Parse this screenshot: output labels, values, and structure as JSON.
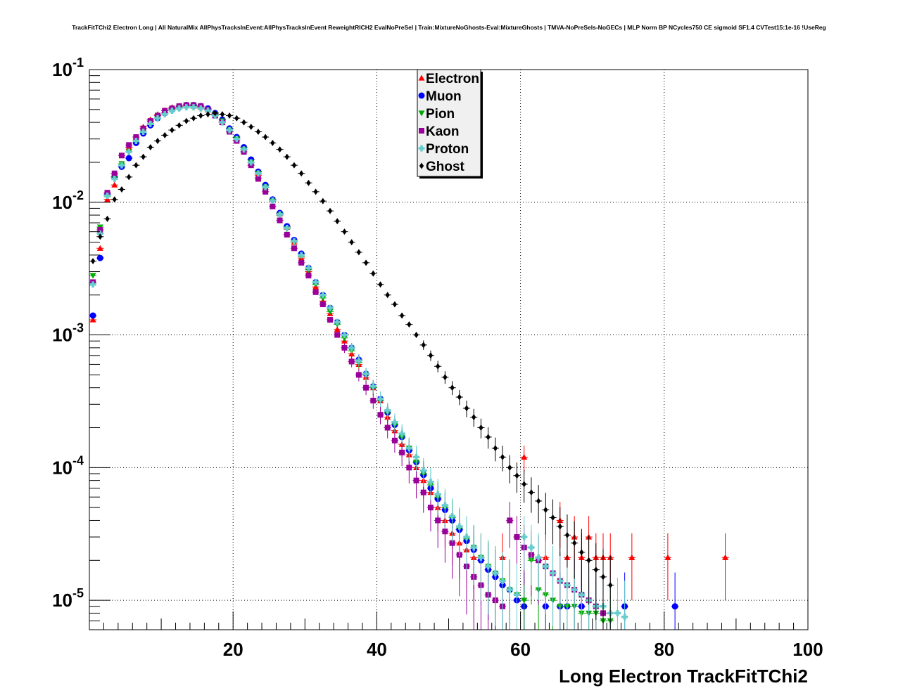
{
  "chart_data": {
    "type": "scatter",
    "title": "TrackFitTChi2 Electron Long | All NaturalMix AllPhysTracksInEvent:AllPhysTracksInEvent ReweightRICH2 EvalNoPreSel | Train:MixtureNoGhosts-Eval:MixtureGhosts | TMVA-NoPreSels-NoGECs | MLP Norm BP NCycles750 CE sigmoid SF1.4 CVTest15:1e-16 !UseReg",
    "xlabel": "Long Electron TrackFitTChi2",
    "ylabel": "",
    "xlim": [
      0,
      100
    ],
    "ylim": [
      6e-06,
      0.1
    ],
    "y_scale": "log",
    "grid": true,
    "legend_position": "top-center",
    "x_tick_labels": [
      "20",
      "40",
      "60",
      "80",
      "100"
    ],
    "y_tick_labels": [
      {
        "base": "10",
        "exp": "-1",
        "value": 0.1
      },
      {
        "base": "10",
        "exp": "-2",
        "value": 0.01
      },
      {
        "base": "10",
        "exp": "-3",
        "value": 0.001
      },
      {
        "base": "10",
        "exp": "-4",
        "value": 0.0001
      },
      {
        "base": "10",
        "exp": "-5",
        "value": 1e-05
      }
    ],
    "series": [
      {
        "name": "Electron",
        "color": "#ff0000",
        "marker": "triangle-up",
        "x": [
          0.5,
          1.5,
          2.5,
          3.5,
          4.5,
          5.5,
          6.5,
          7.5,
          8.5,
          9.5,
          10.5,
          11.5,
          12.5,
          13.5,
          14.5,
          15.5,
          16.5,
          17.5,
          18.5,
          19.5,
          20.5,
          21.5,
          22.5,
          23.5,
          24.5,
          25.5,
          26.5,
          27.5,
          28.5,
          29.5,
          30.5,
          31.5,
          32.5,
          33.5,
          34.5,
          35.5,
          36.5,
          37.5,
          38.5,
          39.5,
          40.5,
          41.5,
          42.5,
          43.5,
          44.5,
          45.5,
          46.5,
          47.5,
          48.5,
          49.5,
          50.5,
          51.5,
          52.5,
          53.5,
          54.5,
          57.5,
          60.5,
          63.5,
          65.5,
          66.5,
          67.5,
          68.5,
          69.5,
          70.5,
          71.5,
          72.5,
          75.5,
          80.5,
          88.5
        ],
        "y": [
          0.0013,
          0.0045,
          0.0105,
          0.0135,
          0.0195,
          0.026,
          0.031,
          0.037,
          0.042,
          0.046,
          0.049,
          0.052,
          0.053,
          0.054,
          0.053,
          0.052,
          0.05,
          0.045,
          0.04,
          0.035,
          0.03,
          0.025,
          0.02,
          0.016,
          0.013,
          0.0105,
          0.0082,
          0.0065,
          0.005,
          0.0038,
          0.003,
          0.0023,
          0.0018,
          0.00145,
          0.0011,
          0.0009,
          0.00072,
          0.0006,
          0.00048,
          0.0004,
          0.00032,
          0.00024,
          0.00019,
          0.00015,
          0.000125,
          0.0001,
          8e-05,
          6.5e-05,
          5e-05,
          4e-05,
          3.2e-05,
          2.7e-05,
          2.4e-05,
          2.1e-05,
          2.1e-05,
          2.1e-05,
          0.00012,
          2.1e-05,
          4e-05,
          2.1e-05,
          3e-05,
          2.1e-05,
          3e-05,
          2.1e-05,
          2.1e-05,
          2.1e-05,
          2.1e-05,
          2.1e-05,
          2.1e-05
        ]
      },
      {
        "name": "Muon",
        "color": "#0000ff",
        "marker": "circle",
        "x": [
          0.5,
          1.5,
          2.5,
          3.5,
          4.5,
          5.5,
          6.5,
          7.5,
          8.5,
          9.5,
          10.5,
          11.5,
          12.5,
          13.5,
          14.5,
          15.5,
          16.5,
          17.5,
          18.5,
          19.5,
          20.5,
          21.5,
          22.5,
          23.5,
          24.5,
          25.5,
          26.5,
          27.5,
          28.5,
          29.5,
          30.5,
          31.5,
          32.5,
          33.5,
          34.5,
          35.5,
          36.5,
          37.5,
          38.5,
          39.5,
          40.5,
          41.5,
          42.5,
          43.5,
          44.5,
          45.5,
          46.5,
          47.5,
          48.5,
          49.5,
          50.5,
          51.5,
          52.5,
          53.5,
          54.5,
          55.5,
          56.5,
          57.5,
          58.5,
          59.5,
          60.5,
          63.5,
          65.5,
          66.5,
          68.5,
          74.5,
          81.5
        ],
        "y": [
          0.0014,
          0.0038,
          0.0115,
          0.0155,
          0.0185,
          0.0215,
          0.028,
          0.033,
          0.038,
          0.043,
          0.047,
          0.05,
          0.052,
          0.054,
          0.054,
          0.053,
          0.051,
          0.047,
          0.042,
          0.036,
          0.031,
          0.026,
          0.021,
          0.017,
          0.0135,
          0.0105,
          0.0083,
          0.0066,
          0.0052,
          0.0041,
          0.0032,
          0.0025,
          0.002,
          0.0016,
          0.00125,
          0.001,
          0.0008,
          0.00065,
          0.00051,
          0.00041,
          0.00033,
          0.00026,
          0.00021,
          0.00017,
          0.000135,
          0.00011,
          8.8e-05,
          7e-05,
          5.8e-05,
          4.8e-05,
          4e-05,
          3.4e-05,
          2.8e-05,
          2.4e-05,
          2e-05,
          1.7e-05,
          1.5e-05,
          1.3e-05,
          1.2e-05,
          1e-05,
          9e-06,
          9e-06,
          9e-06,
          9e-06,
          9e-06,
          9e-06,
          9e-06
        ]
      },
      {
        "name": "Pion",
        "color": "#00aa00",
        "marker": "triangle-down",
        "x": [
          0.5,
          1.5,
          2.5,
          3.5,
          4.5,
          5.5,
          6.5,
          7.5,
          8.5,
          9.5,
          10.5,
          11.5,
          12.5,
          13.5,
          14.5,
          15.5,
          16.5,
          17.5,
          18.5,
          19.5,
          20.5,
          21.5,
          22.5,
          23.5,
          24.5,
          25.5,
          26.5,
          27.5,
          28.5,
          29.5,
          30.5,
          31.5,
          32.5,
          33.5,
          34.5,
          35.5,
          36.5,
          37.5,
          38.5,
          39.5,
          40.5,
          41.5,
          42.5,
          43.5,
          44.5,
          45.5,
          46.5,
          47.5,
          48.5,
          49.5,
          50.5,
          51.5,
          52.5,
          53.5,
          54.5,
          55.5,
          56.5,
          57.5,
          58.5,
          59.5,
          60.5,
          61.5,
          62.5,
          63.5,
          64.5,
          65.5,
          66.5,
          67.5,
          68.5,
          69.5,
          70.5,
          71.5,
          72.5
        ],
        "y": [
          0.0028,
          0.0065,
          0.011,
          0.0155,
          0.0195,
          0.024,
          0.029,
          0.034,
          0.039,
          0.043,
          0.047,
          0.05,
          0.052,
          0.053,
          0.053,
          0.052,
          0.05,
          0.046,
          0.041,
          0.035,
          0.03,
          0.025,
          0.02,
          0.0165,
          0.013,
          0.0102,
          0.008,
          0.0063,
          0.005,
          0.0039,
          0.0031,
          0.0024,
          0.0019,
          0.0015,
          0.0012,
          0.00095,
          0.00076,
          0.00062,
          0.0005,
          0.0004,
          0.00032,
          0.00026,
          0.00021,
          0.00017,
          0.00014,
          0.00011,
          9e-05,
          7.4e-05,
          6e-05,
          5e-05,
          4.2e-05,
          3.5e-05,
          2.9e-05,
          2.5e-05,
          2.1e-05,
          1.8e-05,
          1.6e-05,
          1.4e-05,
          1.2e-05,
          1.1e-05,
          1e-05,
          2e-05,
          1.2e-05,
          1.1e-05,
          1e-05,
          9e-06,
          9e-06,
          9e-06,
          8e-06,
          8e-06,
          8e-06,
          7e-06,
          7e-06
        ]
      },
      {
        "name": "Kaon",
        "color": "#990099",
        "marker": "square",
        "x": [
          0.5,
          1.5,
          2.5,
          3.5,
          4.5,
          5.5,
          6.5,
          7.5,
          8.5,
          9.5,
          10.5,
          11.5,
          12.5,
          13.5,
          14.5,
          15.5,
          16.5,
          17.5,
          18.5,
          19.5,
          20.5,
          21.5,
          22.5,
          23.5,
          24.5,
          25.5,
          26.5,
          27.5,
          28.5,
          29.5,
          30.5,
          31.5,
          32.5,
          33.5,
          34.5,
          35.5,
          36.5,
          37.5,
          38.5,
          39.5,
          40.5,
          41.5,
          42.5,
          43.5,
          44.5,
          45.5,
          46.5,
          47.5,
          48.5,
          49.5,
          50.5,
          51.5,
          52.5,
          53.5,
          54.5,
          55.5,
          56.5,
          57.5,
          58.5,
          59.5,
          60.5,
          61.5,
          62.5,
          63.5,
          64.5,
          65.5,
          66.5,
          67.5,
          68.5,
          69.5,
          70.5,
          71.5
        ],
        "y": [
          0.0025,
          0.0062,
          0.0118,
          0.0165,
          0.0225,
          0.027,
          0.031,
          0.036,
          0.041,
          0.045,
          0.049,
          0.051,
          0.053,
          0.054,
          0.054,
          0.053,
          0.05,
          0.045,
          0.04,
          0.034,
          0.029,
          0.024,
          0.019,
          0.015,
          0.012,
          0.0093,
          0.0073,
          0.0057,
          0.0045,
          0.0035,
          0.0028,
          0.0021,
          0.0017,
          0.0013,
          0.001,
          0.0008,
          0.00063,
          0.0005,
          0.0004,
          0.00032,
          0.00025,
          0.0002,
          0.00016,
          0.00013,
          0.0001,
          8e-05,
          6.5e-05,
          5e-05,
          4e-05,
          3.3e-05,
          2.7e-05,
          2.2e-05,
          1.8e-05,
          1.5e-05,
          1.3e-05,
          1.1e-05,
          1e-05,
          9e-06,
          4e-05,
          3e-05,
          2.5e-05,
          2.2e-05,
          2e-05,
          1.8e-05,
          1.6e-05,
          1.4e-05,
          1.3e-05,
          1.2e-05,
          1.1e-05,
          1e-05,
          9e-06,
          8e-06
        ]
      },
      {
        "name": "Proton",
        "color": "#66cccc",
        "marker": "plus",
        "x": [
          0.5,
          1.5,
          2.5,
          3.5,
          4.5,
          5.5,
          6.5,
          7.5,
          8.5,
          9.5,
          10.5,
          11.5,
          12.5,
          13.5,
          14.5,
          15.5,
          16.5,
          17.5,
          18.5,
          19.5,
          20.5,
          21.5,
          22.5,
          23.5,
          24.5,
          25.5,
          26.5,
          27.5,
          28.5,
          29.5,
          30.5,
          31.5,
          32.5,
          33.5,
          34.5,
          35.5,
          36.5,
          37.5,
          38.5,
          39.5,
          40.5,
          41.5,
          42.5,
          43.5,
          44.5,
          45.5,
          46.5,
          47.5,
          48.5,
          49.5,
          50.5,
          51.5,
          52.5,
          53.5,
          54.5,
          55.5,
          56.5,
          57.5,
          58.5,
          59.5,
          60.5,
          61.5,
          62.5,
          63.5,
          64.5,
          65.5,
          66.5,
          67.5,
          68.5,
          69.5,
          70.5,
          71.5,
          72.5,
          73.5,
          74.5
        ],
        "y": [
          0.0024,
          0.0058,
          0.0112,
          0.015,
          0.019,
          0.024,
          0.029,
          0.034,
          0.039,
          0.043,
          0.046,
          0.049,
          0.051,
          0.052,
          0.052,
          0.051,
          0.049,
          0.045,
          0.04,
          0.035,
          0.03,
          0.025,
          0.02,
          0.0165,
          0.013,
          0.0103,
          0.0081,
          0.0064,
          0.0051,
          0.004,
          0.0032,
          0.0025,
          0.002,
          0.0016,
          0.00125,
          0.001,
          0.0008,
          0.00064,
          0.00051,
          0.00041,
          0.00033,
          0.00027,
          0.00022,
          0.00018,
          0.00014,
          0.00012,
          9.5e-05,
          7.8e-05,
          6.3e-05,
          5.2e-05,
          4.3e-05,
          3.6e-05,
          3e-05,
          2.5e-05,
          2.1e-05,
          1.8e-05,
          1.6e-05,
          1.4e-05,
          1.2e-05,
          1.1e-05,
          3e-05,
          2.5e-05,
          2.1e-05,
          1.8e-05,
          1.6e-05,
          1.4e-05,
          1.3e-05,
          1.2e-05,
          1.1e-05,
          1e-05,
          9e-06,
          9e-06,
          8e-06,
          8e-06,
          7.5e-06
        ]
      },
      {
        "name": "Ghost",
        "color": "#000000",
        "marker": "diamond",
        "x": [
          0.5,
          1.5,
          2.5,
          3.5,
          4.5,
          5.5,
          6.5,
          7.5,
          8.5,
          9.5,
          10.5,
          11.5,
          12.5,
          13.5,
          14.5,
          15.5,
          16.5,
          17.5,
          18.5,
          19.5,
          20.5,
          21.5,
          22.5,
          23.5,
          24.5,
          25.5,
          26.5,
          27.5,
          28.5,
          29.5,
          30.5,
          31.5,
          32.5,
          33.5,
          34.5,
          35.5,
          36.5,
          37.5,
          38.5,
          39.5,
          40.5,
          41.5,
          42.5,
          43.5,
          44.5,
          45.5,
          46.5,
          47.5,
          48.5,
          49.5,
          50.5,
          51.5,
          52.5,
          53.5,
          54.5,
          55.5,
          56.5,
          57.5,
          58.5,
          59.5,
          60.5,
          61.5,
          62.5,
          63.5,
          64.5,
          65.5,
          66.5,
          67.5,
          68.5,
          69.5,
          70.5,
          71.5,
          72.5
        ],
        "y": [
          0.0036,
          0.0055,
          0.0075,
          0.0105,
          0.0125,
          0.0155,
          0.019,
          0.022,
          0.026,
          0.029,
          0.032,
          0.035,
          0.038,
          0.041,
          0.043,
          0.045,
          0.046,
          0.047,
          0.046,
          0.045,
          0.043,
          0.04,
          0.037,
          0.034,
          0.031,
          0.028,
          0.025,
          0.022,
          0.019,
          0.0165,
          0.014,
          0.012,
          0.0102,
          0.0086,
          0.0072,
          0.006,
          0.005,
          0.0042,
          0.0035,
          0.0029,
          0.0024,
          0.002,
          0.0017,
          0.0014,
          0.0012,
          0.001,
          0.00084,
          0.0007,
          0.00058,
          0.00048,
          0.0004,
          0.00034,
          0.00028,
          0.00024,
          0.0002,
          0.00017,
          0.00014,
          0.00012,
          0.0001,
          8.7e-05,
          7.5e-05,
          6.5e-05,
          5.6e-05,
          4.8e-05,
          4.2e-05,
          3.6e-05,
          3.1e-05,
          2.7e-05,
          2.3e-05,
          2e-05,
          1.7e-05,
          1.5e-05,
          1.3e-05
        ]
      }
    ]
  }
}
